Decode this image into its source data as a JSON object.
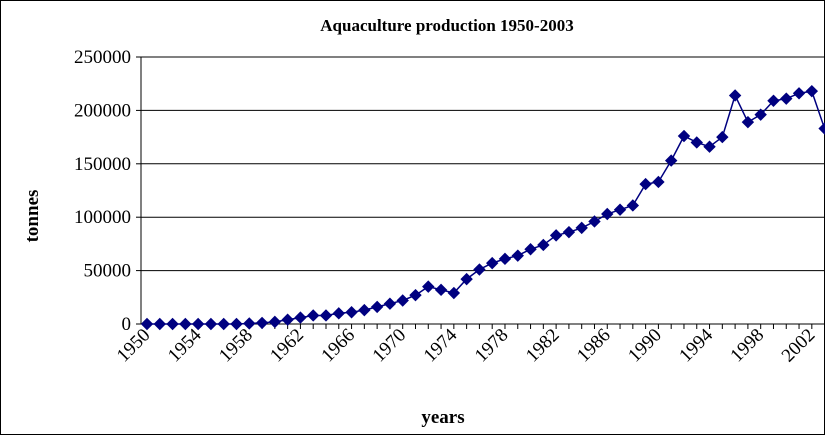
{
  "chart_data": {
    "type": "line",
    "title": "Aquaculture production 1950-2003",
    "xlabel": "years",
    "ylabel": "tonnes",
    "x_ticks": [
      "1950",
      "1954",
      "1958",
      "1962",
      "1966",
      "1970",
      "1974",
      "1978",
      "1982",
      "1986",
      "1990",
      "1994",
      "1998",
      "2002"
    ],
    "y_ticks": [
      "0",
      "50000",
      "100000",
      "150000",
      "200000",
      "250000"
    ],
    "ylim": [
      0,
      250000
    ],
    "xlim": [
      1950,
      2003
    ],
    "grid": "horizontal",
    "legend": "none",
    "series": [
      {
        "color": "#000080",
        "marker": "diamond",
        "x": [
          1950,
          1951,
          1952,
          1953,
          1954,
          1955,
          1956,
          1957,
          1958,
          1959,
          1960,
          1961,
          1962,
          1963,
          1964,
          1965,
          1966,
          1967,
          1968,
          1969,
          1970,
          1971,
          1972,
          1973,
          1974,
          1975,
          1976,
          1977,
          1978,
          1979,
          1980,
          1981,
          1982,
          1983,
          1984,
          1985,
          1986,
          1987,
          1988,
          1989,
          1990,
          1991,
          1992,
          1993,
          1994,
          1995,
          1996,
          1997,
          1998,
          1999,
          2000,
          2001,
          2002,
          2003
        ],
        "values": [
          0,
          0,
          0,
          0,
          0,
          0,
          0,
          0,
          500,
          1000,
          2000,
          4000,
          6000,
          8000,
          8000,
          10000,
          11000,
          13000,
          16000,
          19000,
          22000,
          27000,
          35000,
          32000,
          29000,
          42000,
          51000,
          57000,
          61000,
          64000,
          70000,
          74000,
          83000,
          86000,
          90000,
          96000,
          103000,
          107000,
          111000,
          131000,
          133000,
          153000,
          176000,
          170000,
          166000,
          175000,
          214000,
          189000,
          196000,
          209000,
          211000,
          216000,
          218000,
          183000
        ]
      }
    ]
  }
}
